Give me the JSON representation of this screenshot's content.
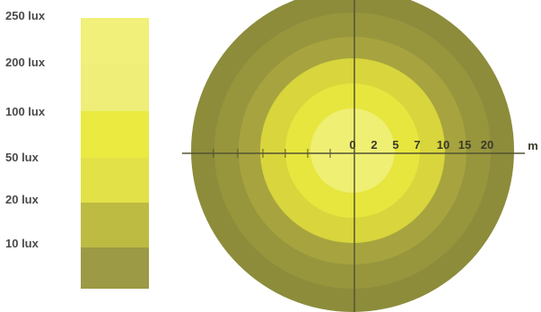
{
  "legend": {
    "labels": [
      "250 lux",
      "200 lux",
      "100 lux",
      "50 lux",
      "20 lux",
      "10 lux"
    ],
    "colors": [
      "#f0f07a",
      "#eeee78",
      "#eaea40",
      "#e2e248",
      "#bdbb42",
      "#9c9a44"
    ]
  },
  "rings": {
    "colors": [
      "#8c8c3b",
      "#97963d",
      "#a7a43f",
      "#d8d53d",
      "#e7e63e",
      "#efef74"
    ]
  },
  "axis": {
    "ticks": [
      "0",
      "2",
      "5",
      "7",
      "10",
      "15",
      "20"
    ],
    "unit": "m",
    "line_color": "#555533"
  }
}
